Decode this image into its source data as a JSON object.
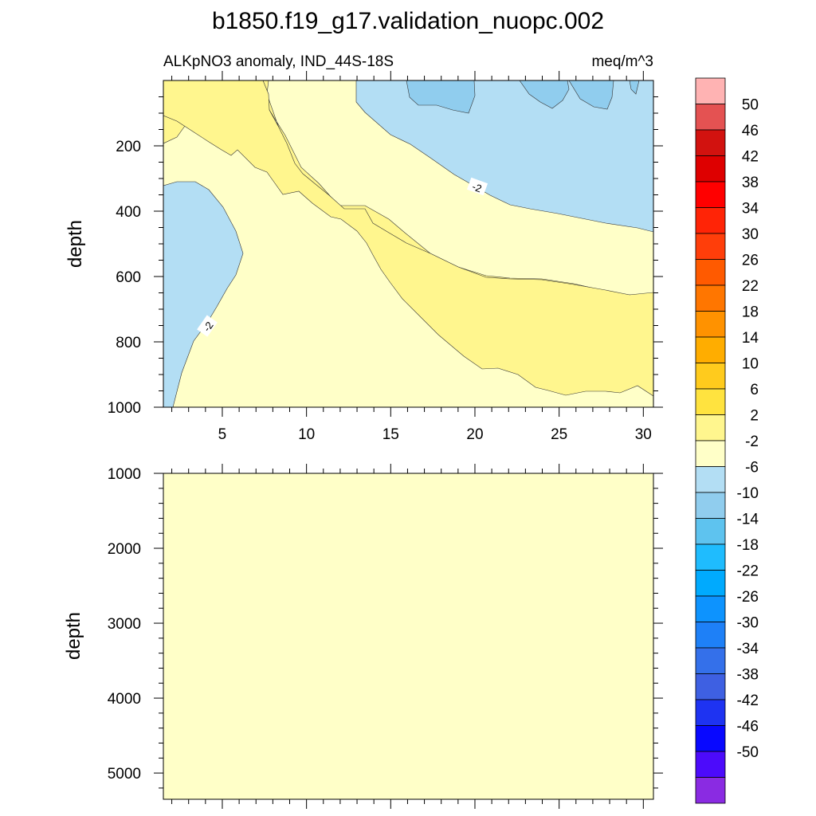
{
  "chart_data": [
    {
      "type": "filled-contour",
      "title": "b1850.f19_g17.validation_nuopc.002",
      "subtitle_left": "ALKpNO3 anomaly, IND_44S-18S",
      "subtitle_right": "meq/m^3",
      "ylabel": "depth",
      "xlabel": "",
      "xlim": [
        1.5,
        30.6
      ],
      "ylim": [
        1000,
        0
      ],
      "x_ticks": [
        5,
        10,
        15,
        20,
        25,
        30
      ],
      "y_ticks": [
        200,
        400,
        600,
        800,
        1000
      ],
      "contour_labels": [
        "-2",
        "-2"
      ],
      "regions": [
        {
          "level": "2 to 6",
          "description": "band from surface x 5-13 descending to x 20-30 at 600-1000 m"
        },
        {
          "level": "-2 to 2",
          "description": "background"
        },
        {
          "level": "-6 to -2",
          "description": "upper right (x 13-30, 0-470 m) and left side (x 1.5-6.5, 300-1000 m)"
        },
        {
          "level": "-10 to -6",
          "description": "small patches near surface at x 15-30"
        }
      ]
    },
    {
      "type": "filled-contour",
      "ylabel": "depth",
      "xlim": [
        1.5,
        30.6
      ],
      "ylim": [
        5350,
        1000
      ],
      "y_ticks": [
        1000,
        2000,
        3000,
        4000,
        5000
      ],
      "regions": [
        {
          "level": "-2 to 2",
          "description": "entire panel"
        }
      ]
    }
  ],
  "colorbar": {
    "labels": [
      "50",
      "46",
      "42",
      "38",
      "34",
      "30",
      "26",
      "22",
      "18",
      "14",
      "10",
      "6",
      "2",
      "-2",
      "-6",
      "-10",
      "-14",
      "-18",
      "-22",
      "-26",
      "-30",
      "-34",
      "-38",
      "-42",
      "-46",
      "-50"
    ],
    "colors": [
      "#ffb3b3",
      "#e45252",
      "#d2120f",
      "#de0000",
      "#ff0000",
      "#ff2406",
      "#ff3e0a",
      "#ff5a00",
      "#ff7600",
      "#ff9200",
      "#ffad00",
      "#ffcb1d",
      "#ffe33f",
      "#fff68e",
      "#ffffc8",
      "#b3def4",
      "#90cdee",
      "#5ec3ef",
      "#1fbcfe",
      "#00aafe",
      "#0d93fe",
      "#1e80f7",
      "#3470ea",
      "#3e60e2",
      "#1e33f2",
      "#0808ff",
      "#4c0bfb",
      "#8a2be2"
    ]
  }
}
